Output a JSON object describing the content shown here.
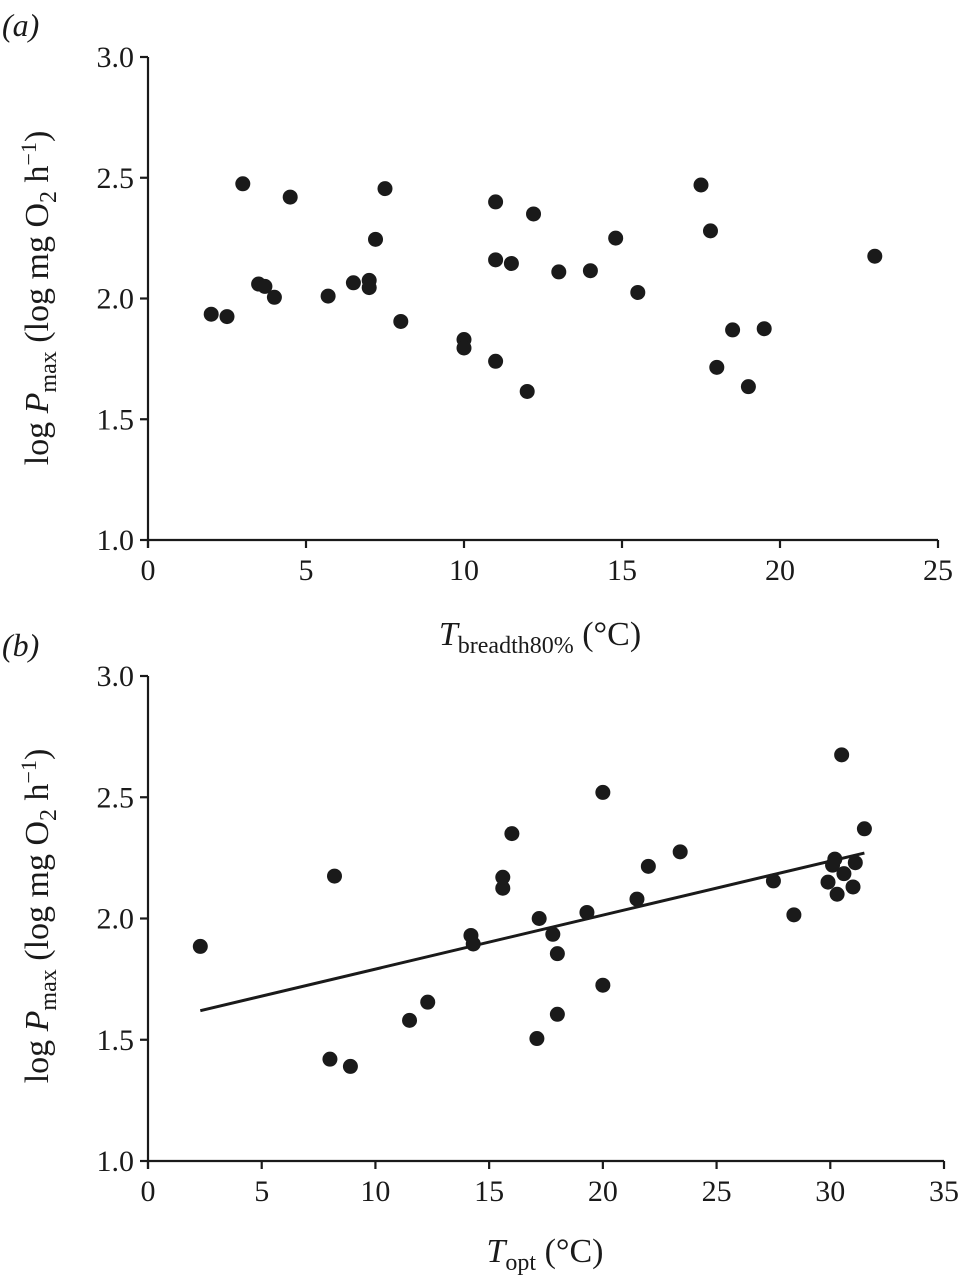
{
  "colors": {
    "ink": "#1a1a1a",
    "background": "#ffffff"
  },
  "chart_data": [
    {
      "type": "scatter",
      "panel_label": "(a)",
      "xlabel": {
        "main": "T",
        "sub": "breadth80%",
        "unit": " (°C)"
      },
      "ylabel": {
        "prefix": "log ",
        "var": "P",
        "sub": "max",
        "unit_a": " (log mg O",
        "unit_sub": "2",
        "unit_b": " h",
        "unit_sup": "−1",
        "unit_c": ")"
      },
      "xlim": [
        0,
        25
      ],
      "ylim": [
        1.0,
        3.0
      ],
      "xticks": [
        "0",
        "5",
        "10",
        "15",
        "20",
        "25"
      ],
      "yticks": [
        "1.0",
        "1.5",
        "2.0",
        "2.5",
        "3.0"
      ],
      "grid": false,
      "points": [
        [
          2.0,
          1.935
        ],
        [
          2.5,
          1.925
        ],
        [
          3.0,
          2.475
        ],
        [
          3.5,
          2.06
        ],
        [
          3.7,
          2.05
        ],
        [
          4.0,
          2.005
        ],
        [
          4.5,
          2.42
        ],
        [
          5.7,
          2.01
        ],
        [
          6.5,
          2.065
        ],
        [
          7.0,
          2.075
        ],
        [
          7.0,
          2.045
        ],
        [
          7.2,
          2.245
        ],
        [
          7.5,
          2.455
        ],
        [
          8.0,
          1.905
        ],
        [
          10.0,
          1.83
        ],
        [
          10.0,
          1.795
        ],
        [
          11.0,
          2.4
        ],
        [
          11.0,
          2.16
        ],
        [
          11.5,
          2.145
        ],
        [
          11.0,
          1.74
        ],
        [
          12.0,
          1.615
        ],
        [
          12.2,
          2.35
        ],
        [
          13.0,
          2.11
        ],
        [
          14.0,
          2.115
        ],
        [
          14.8,
          2.25
        ],
        [
          15.5,
          2.025
        ],
        [
          17.5,
          2.47
        ],
        [
          17.8,
          2.28
        ],
        [
          18.0,
          1.715
        ],
        [
          18.5,
          1.87
        ],
        [
          19.0,
          1.635
        ],
        [
          19.5,
          1.875
        ],
        [
          23.0,
          2.175
        ]
      ]
    },
    {
      "type": "scatter",
      "panel_label": "(b)",
      "xlabel": {
        "main": "T",
        "sub": "opt",
        "unit": " (°C)"
      },
      "ylabel": {
        "prefix": "log ",
        "var": "P",
        "sub": "max",
        "unit_a": " (log mg O",
        "unit_sub": "2",
        "unit_b": " h",
        "unit_sup": "−1",
        "unit_c": ")"
      },
      "xlim": [
        0,
        35
      ],
      "ylim": [
        1.0,
        3.0
      ],
      "xticks": [
        "0",
        "5",
        "10",
        "15",
        "20",
        "25",
        "30",
        "35"
      ],
      "yticks": [
        "1.0",
        "1.5",
        "2.0",
        "2.5",
        "3.0"
      ],
      "grid": false,
      "points": [
        [
          2.3,
          1.885
        ],
        [
          8.0,
          1.42
        ],
        [
          8.2,
          2.175
        ],
        [
          8.9,
          1.39
        ],
        [
          11.5,
          1.58
        ],
        [
          12.3,
          1.655
        ],
        [
          14.2,
          1.93
        ],
        [
          14.3,
          1.895
        ],
        [
          15.6,
          2.125
        ],
        [
          15.6,
          2.17
        ],
        [
          16.0,
          2.35
        ],
        [
          17.1,
          1.505
        ],
        [
          17.2,
          2.0
        ],
        [
          17.8,
          1.935
        ],
        [
          18.0,
          1.855
        ],
        [
          18.0,
          1.605
        ],
        [
          19.3,
          2.025
        ],
        [
          20.0,
          2.52
        ],
        [
          20.0,
          1.725
        ],
        [
          21.5,
          2.08
        ],
        [
          22.0,
          2.215
        ],
        [
          23.4,
          2.275
        ],
        [
          27.5,
          2.155
        ],
        [
          28.4,
          2.015
        ],
        [
          29.9,
          2.15
        ],
        [
          30.1,
          2.22
        ],
        [
          30.2,
          2.245
        ],
        [
          30.3,
          2.1
        ],
        [
          30.5,
          2.675
        ],
        [
          30.6,
          2.185
        ],
        [
          31.0,
          2.13
        ],
        [
          31.1,
          2.23
        ],
        [
          31.5,
          2.37
        ]
      ],
      "trend_line": {
        "x": [
          2.3,
          31.5
        ],
        "y": [
          1.62,
          2.27
        ]
      }
    }
  ]
}
